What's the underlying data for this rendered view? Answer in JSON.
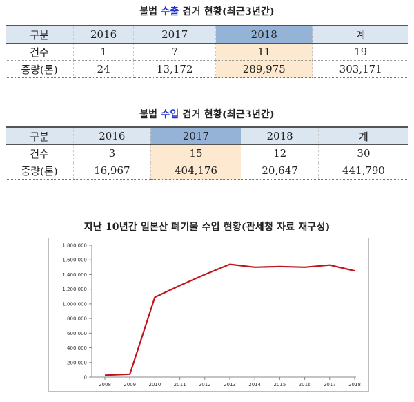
{
  "export_section": {
    "title_pre": "불법 ",
    "title_hl": "수출",
    "title_post": " 검거 현황(최근3년간)",
    "headers": [
      "구분",
      "2016",
      "2017",
      "2018",
      "계"
    ],
    "rows": [
      [
        "건수",
        "1",
        "7",
        "11",
        "19"
      ],
      [
        "중량(톤)",
        "24",
        "13,172",
        "289,975",
        "303,171"
      ]
    ]
  },
  "import_section": {
    "title_pre": "불법 ",
    "title_hl": "수입",
    "title_post": " 검거 현황(최근3년간)",
    "headers": [
      "구분",
      "2016",
      "2017",
      "2018",
      "계"
    ],
    "rows": [
      [
        "건수",
        "3",
        "15",
        "12",
        "30"
      ],
      [
        "중량(톤)",
        "16,967",
        "404,176",
        "20,647",
        "441,790"
      ]
    ]
  },
  "chart_title": "지난 10년간 일본산 폐기물 수입 현황(관세청 자료 재구성)",
  "colors": {
    "header_bg": "#dce6f1",
    "header_selected": "#95b3d7",
    "highlight": "#fde9d0",
    "line": "#c0141c",
    "accent_text": "#2233cc"
  },
  "chart_data": {
    "type": "line",
    "title": "",
    "x": [
      "2008",
      "2009",
      "2010",
      "2011",
      "2012",
      "2013",
      "2014",
      "2015",
      "2016",
      "2017",
      "2018"
    ],
    "series": [
      {
        "values": [
          25000,
          40000,
          1090000,
          1250000,
          1400000,
          1540000,
          1500000,
          1510000,
          1500000,
          1530000,
          1450000
        ]
      }
    ],
    "ylim": [
      0,
      1800000
    ],
    "yticks": [
      "0",
      "200,000",
      "400,000",
      "600,000",
      "800,000",
      "1,000,000",
      "1,200,000",
      "1,400,000",
      "1,600,000",
      "1,800,000"
    ],
    "grid": false,
    "legend": "none"
  }
}
